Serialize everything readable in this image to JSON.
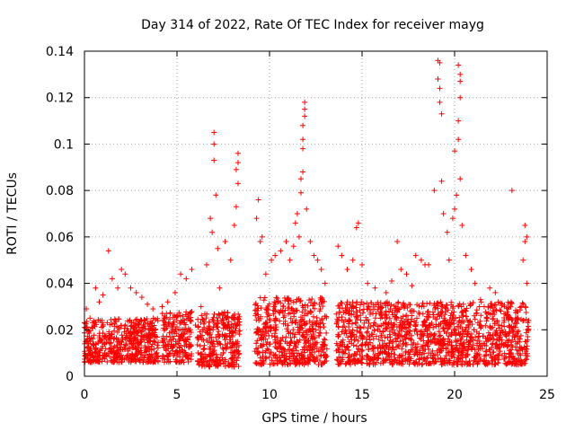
{
  "chart_data": {
    "type": "scatter",
    "title": "Day 314 of 2022, Rate Of TEC Index for receiver mayg",
    "xlabel": "GPS time / hours",
    "ylabel": "ROTI / TECUs",
    "xlim": [
      0,
      25
    ],
    "ylim": [
      0,
      0.14
    ],
    "xticks": [
      0,
      5,
      10,
      15,
      20,
      25
    ],
    "yticks": [
      0,
      0.02,
      0.04,
      0.06,
      0.08,
      0.1,
      0.12,
      0.14
    ],
    "xtick_labels": [
      "0",
      "5",
      "10",
      "15",
      "20",
      "25"
    ],
    "ytick_labels": [
      "0",
      "0.02",
      "0.04",
      "0.06",
      "0.08",
      "0.1",
      "0.12",
      "0.14"
    ],
    "grid": true,
    "legend": "none",
    "marker": "plus",
    "series_color": "#ff0000",
    "series": [
      {
        "points": [
          [
            0.1,
            0.029
          ],
          [
            0.3,
            0.025
          ],
          [
            0.6,
            0.038
          ],
          [
            0.8,
            0.032
          ],
          [
            1.0,
            0.035
          ],
          [
            1.3,
            0.054
          ],
          [
            1.5,
            0.042
          ],
          [
            1.8,
            0.038
          ],
          [
            2.0,
            0.046
          ],
          [
            2.2,
            0.044
          ],
          [
            2.5,
            0.038
          ],
          [
            2.8,
            0.036
          ],
          [
            3.1,
            0.034
          ],
          [
            3.4,
            0.031
          ],
          [
            3.7,
            0.029
          ],
          [
            4.2,
            0.03
          ],
          [
            4.5,
            0.032
          ],
          [
            4.9,
            0.036
          ],
          [
            5.2,
            0.044
          ],
          [
            5.5,
            0.042
          ],
          [
            5.8,
            0.046
          ],
          [
            6.0,
            0.022
          ],
          [
            6.3,
            0.03
          ],
          [
            6.6,
            0.048
          ],
          [
            6.8,
            0.068
          ],
          [
            6.9,
            0.062
          ],
          [
            7.0,
            0.105
          ],
          [
            7.0,
            0.1
          ],
          [
            7.0,
            0.093
          ],
          [
            7.1,
            0.078
          ],
          [
            7.2,
            0.055
          ],
          [
            7.3,
            0.038
          ],
          [
            7.6,
            0.058
          ],
          [
            7.9,
            0.05
          ],
          [
            8.1,
            0.065
          ],
          [
            8.2,
            0.073
          ],
          [
            8.2,
            0.089
          ],
          [
            8.3,
            0.092
          ],
          [
            8.3,
            0.096
          ],
          [
            8.3,
            0.083
          ],
          [
            9.3,
            0.068
          ],
          [
            9.4,
            0.076
          ],
          [
            9.5,
            0.058
          ],
          [
            9.6,
            0.06
          ],
          [
            9.8,
            0.044
          ],
          [
            10.1,
            0.05
          ],
          [
            10.3,
            0.052
          ],
          [
            10.6,
            0.054
          ],
          [
            10.9,
            0.058
          ],
          [
            11.1,
            0.05
          ],
          [
            11.3,
            0.056
          ],
          [
            11.4,
            0.066
          ],
          [
            11.5,
            0.07
          ],
          [
            11.6,
            0.06
          ],
          [
            11.7,
            0.079
          ],
          [
            11.7,
            0.085
          ],
          [
            11.8,
            0.088
          ],
          [
            11.8,
            0.102
          ],
          [
            11.8,
            0.108
          ],
          [
            11.9,
            0.112
          ],
          [
            11.9,
            0.118
          ],
          [
            11.9,
            0.115
          ],
          [
            11.8,
            0.098
          ],
          [
            12.0,
            0.072
          ],
          [
            12.2,
            0.058
          ],
          [
            12.4,
            0.052
          ],
          [
            12.6,
            0.05
          ],
          [
            12.8,
            0.046
          ],
          [
            13.0,
            0.04
          ],
          [
            13.7,
            0.056
          ],
          [
            13.9,
            0.052
          ],
          [
            14.2,
            0.046
          ],
          [
            14.5,
            0.05
          ],
          [
            14.7,
            0.064
          ],
          [
            14.8,
            0.066
          ],
          [
            15.0,
            0.048
          ],
          [
            15.3,
            0.04
          ],
          [
            15.7,
            0.038
          ],
          [
            16.0,
            0.03
          ],
          [
            16.3,
            0.036
          ],
          [
            16.6,
            0.041
          ],
          [
            16.9,
            0.058
          ],
          [
            17.1,
            0.046
          ],
          [
            17.4,
            0.044
          ],
          [
            17.7,
            0.039
          ],
          [
            17.9,
            0.052
          ],
          [
            18.2,
            0.05
          ],
          [
            18.4,
            0.048
          ],
          [
            18.6,
            0.048
          ],
          [
            18.9,
            0.08
          ],
          [
            19.1,
            0.128
          ],
          [
            19.1,
            0.136
          ],
          [
            19.2,
            0.135
          ],
          [
            19.2,
            0.124
          ],
          [
            19.3,
            0.113
          ],
          [
            19.2,
            0.118
          ],
          [
            19.3,
            0.084
          ],
          [
            19.4,
            0.07
          ],
          [
            19.6,
            0.062
          ],
          [
            19.7,
            0.05
          ],
          [
            19.9,
            0.068
          ],
          [
            20.0,
            0.072
          ],
          [
            20.0,
            0.097
          ],
          [
            20.1,
            0.078
          ],
          [
            20.2,
            0.134
          ],
          [
            20.3,
            0.13
          ],
          [
            20.3,
            0.127
          ],
          [
            20.3,
            0.12
          ],
          [
            20.2,
            0.11
          ],
          [
            20.2,
            0.102
          ],
          [
            20.3,
            0.085
          ],
          [
            20.4,
            0.065
          ],
          [
            20.6,
            0.052
          ],
          [
            20.9,
            0.046
          ],
          [
            21.1,
            0.04
          ],
          [
            21.4,
            0.033
          ],
          [
            21.6,
            0.03
          ],
          [
            21.9,
            0.038
          ],
          [
            22.2,
            0.036
          ],
          [
            22.5,
            0.028
          ],
          [
            22.8,
            0.026
          ],
          [
            23.1,
            0.08
          ],
          [
            23.3,
            0.025
          ],
          [
            23.6,
            0.03
          ],
          [
            23.7,
            0.05
          ],
          [
            23.8,
            0.058
          ],
          [
            23.9,
            0.06
          ],
          [
            23.8,
            0.065
          ],
          [
            23.9,
            0.04
          ],
          [
            24.0,
            0.024
          ]
        ],
        "bands": [
          {
            "x": [
              0.0,
              4.0
            ],
            "low": 0.006,
            "high": 0.025
          },
          {
            "x": [
              4.2,
              5.8
            ],
            "low": 0.006,
            "high": 0.028
          },
          {
            "x": [
              6.1,
              8.4
            ],
            "low": 0.004,
            "high": 0.028
          },
          {
            "x": [
              9.2,
              13.1
            ],
            "low": 0.005,
            "high": 0.034
          },
          {
            "x": [
              13.6,
              24.0
            ],
            "low": 0.005,
            "high": 0.032
          }
        ]
      }
    ]
  }
}
